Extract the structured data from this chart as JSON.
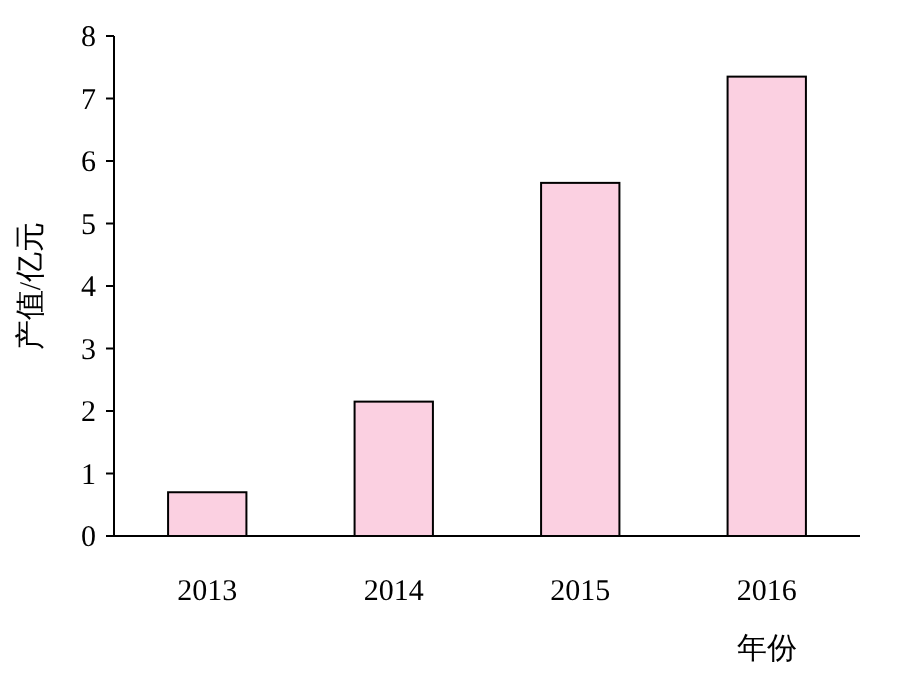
{
  "chart_data": {
    "type": "bar",
    "xlabel": "年份",
    "ylabel": "产值/亿元",
    "categories": [
      "2013",
      "2014",
      "2015",
      "2016"
    ],
    "values": [
      0.7,
      2.15,
      5.65,
      7.35
    ],
    "color": "#fbd0e1",
    "ylim": [
      0,
      8
    ],
    "yticks": [
      0,
      1,
      2,
      3,
      4,
      5,
      6,
      7,
      8
    ]
  }
}
